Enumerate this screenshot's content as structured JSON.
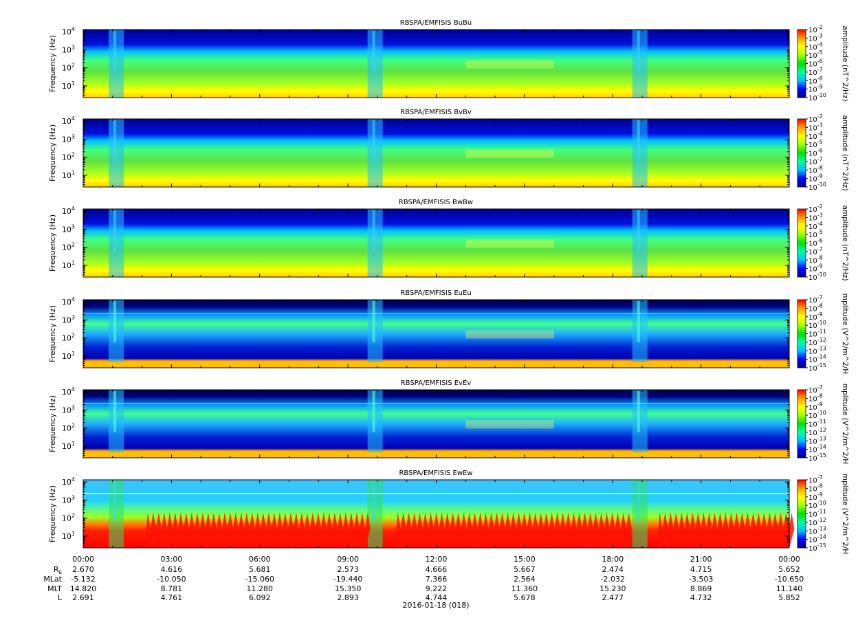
{
  "chart_data": {
    "type": "heatmap",
    "date_label": "2016-01-18 (018)",
    "x_ticks": [
      "00:00",
      "03:00",
      "06:00",
      "09:00",
      "12:00",
      "15:00",
      "18:00",
      "21:00",
      "00:00"
    ],
    "ephemeris": {
      "rows": [
        {
          "label": "R_E",
          "base": "R",
          "sub": "E",
          "values": [
            "2.670",
            "4.616",
            "5.681",
            "2.573",
            "4.666",
            "5.667",
            "2.474",
            "4.715",
            "5.652"
          ]
        },
        {
          "label": "MLat",
          "values": [
            "-5.132",
            "-10.050",
            "-15.060",
            "-19.440",
            "7.366",
            "2.564",
            "-2.032",
            "-3.503",
            "-10.650"
          ]
        },
        {
          "label": "MLT",
          "values": [
            "14.820",
            "8.781",
            "11.280",
            "15.350",
            "9.222",
            "11.360",
            "15.230",
            "8.869",
            "11.140"
          ]
        },
        {
          "label": "L",
          "values": [
            "2.691",
            "4.761",
            "6.092",
            "2.893",
            "4.744",
            "5.678",
            "2.477",
            "4.732",
            "5.852"
          ]
        }
      ]
    },
    "panels": [
      {
        "title": "RBSPA/EMFISIS  BuBu",
        "ylabel": "Frequency (Hz)",
        "y_ticks": [
          "10",
          "10",
          "10",
          "10"
        ],
        "y_exps": [
          "1",
          "2",
          "3",
          "4"
        ],
        "yscale": "log",
        "cbar_label": "amplitude (nT^2/Hz)",
        "cbar_range_exp": [
          -10,
          -2
        ],
        "kind": "B"
      },
      {
        "title": "RBSPA/EMFISIS  BvBv",
        "ylabel": "Frequency (Hz)",
        "y_ticks": [
          "10",
          "10",
          "10",
          "10"
        ],
        "y_exps": [
          "1",
          "2",
          "3",
          "4"
        ],
        "yscale": "log",
        "cbar_label": "amplitude (nT^2/Hz)",
        "cbar_range_exp": [
          -10,
          -2
        ],
        "kind": "B"
      },
      {
        "title": "RBSPA/EMFISIS  BwBw",
        "ylabel": "Frequency (Hz)",
        "y_ticks": [
          "10",
          "10",
          "10",
          "10"
        ],
        "y_exps": [
          "1",
          "2",
          "3",
          "4"
        ],
        "yscale": "log",
        "cbar_label": "amplitude (nT^2/Hz)",
        "cbar_range_exp": [
          -10,
          -2
        ],
        "kind": "B"
      },
      {
        "title": "RBSPA/EMFISIS  EuEu",
        "ylabel": "Frequency (Hz)",
        "y_ticks": [
          "10",
          "10",
          "10",
          "10"
        ],
        "y_exps": [
          "1",
          "2",
          "3",
          "4"
        ],
        "yscale": "log",
        "cbar_label": "mplitude (V^2/m^2/H",
        "cbar_range_exp": [
          -15,
          -7
        ],
        "kind": "E"
      },
      {
        "title": "RBSPA/EMFISIS  EvEv",
        "ylabel": "Frequency (Hz)",
        "y_ticks": [
          "10",
          "10",
          "10",
          "10"
        ],
        "y_exps": [
          "1",
          "2",
          "3",
          "4"
        ],
        "yscale": "log",
        "cbar_label": "mplitude (V^2/m^2/H",
        "cbar_range_exp": [
          -15,
          -7
        ],
        "kind": "E"
      },
      {
        "title": "RBSPA/EMFISIS  EwEw",
        "ylabel": "Frequency (Hz)",
        "y_ticks": [
          "10",
          "10",
          "10",
          "10"
        ],
        "y_exps": [
          "1",
          "2",
          "3",
          "4"
        ],
        "yscale": "log",
        "cbar_label": "mplitude (V^2/m^2/H",
        "cbar_range_exp": [
          -15,
          -7
        ],
        "kind": "W"
      }
    ],
    "colormap": [
      "#000080",
      "#0000ff",
      "#00bfff",
      "#00ffa0",
      "#00e000",
      "#a0ff00",
      "#ffff00",
      "#ffa000",
      "#ff0000"
    ]
  }
}
